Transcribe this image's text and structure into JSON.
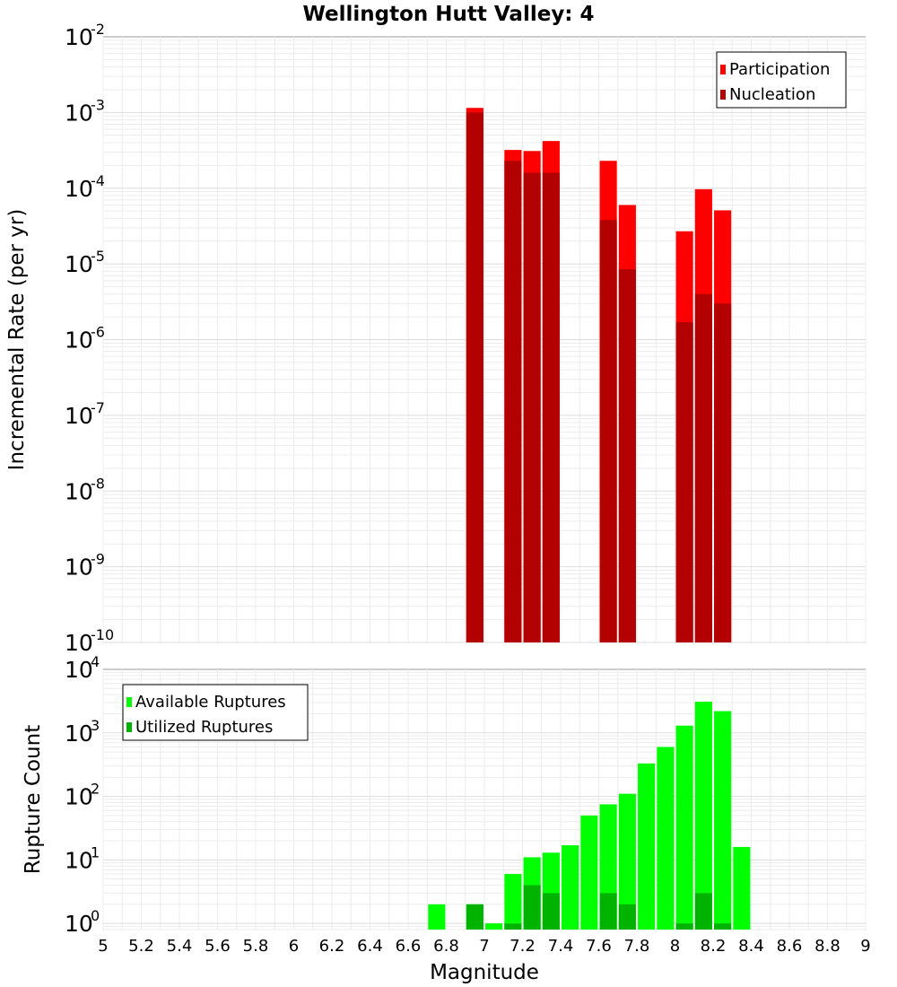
{
  "title": "Wellington Hutt Valley: 4",
  "chart_data": [
    {
      "type": "bar",
      "ylabel": "Incremental Rate (per yr)",
      "xlabel": "",
      "yscale": "log",
      "ylim": [
        1e-10,
        0.01
      ],
      "xlim": [
        5,
        9
      ],
      "grid": true,
      "legend_position": "top-right",
      "x": [
        6.95,
        7.15,
        7.25,
        7.35,
        7.65,
        7.75,
        8.05,
        8.15,
        8.25
      ],
      "series": [
        {
          "name": "Participation",
          "color": "#ff0000",
          "values": [
            0.00115,
            0.00032,
            0.00031,
            0.00042,
            0.00023,
            6e-05,
            2.7e-05,
            9.7e-05,
            5.1e-05
          ]
        },
        {
          "name": "Nucleation",
          "color": "#b30000",
          "values": [
            0.001,
            0.00023,
            0.00016,
            0.00016,
            3.8e-05,
            8.5e-06,
            1.7e-06,
            4e-06,
            3e-06
          ]
        }
      ]
    },
    {
      "type": "bar",
      "ylabel": "Rupture Count",
      "xlabel": "Magnitude",
      "yscale": "log",
      "ylim": [
        0.8,
        10000
      ],
      "xlim": [
        5,
        9
      ],
      "grid": true,
      "legend_position": "top-left",
      "xticks": [
        "5",
        "5.2",
        "5.4",
        "5.6",
        "5.8",
        "6",
        "6.2",
        "6.4",
        "6.6",
        "6.8",
        "7",
        "7.2",
        "7.4",
        "7.6",
        "7.8",
        "8",
        "8.2",
        "8.4",
        "8.6",
        "8.8",
        "9"
      ],
      "x": [
        6.75,
        6.95,
        7.05,
        7.15,
        7.25,
        7.35,
        7.45,
        7.55,
        7.65,
        7.75,
        7.85,
        7.95,
        8.05,
        8.15,
        8.25,
        8.35
      ],
      "series": [
        {
          "name": "Available Ruptures",
          "color": "#00ff00",
          "values": [
            2,
            2,
            1,
            6,
            11,
            13,
            17,
            50,
            75,
            110,
            330,
            600,
            1300,
            3100,
            2200,
            16
          ]
        },
        {
          "name": "Utilized Ruptures",
          "color": "#00b300",
          "values": [
            0,
            2,
            0,
            1,
            4,
            3,
            0,
            0,
            3,
            2,
            0,
            0,
            1,
            3,
            1,
            0
          ]
        }
      ]
    }
  ]
}
